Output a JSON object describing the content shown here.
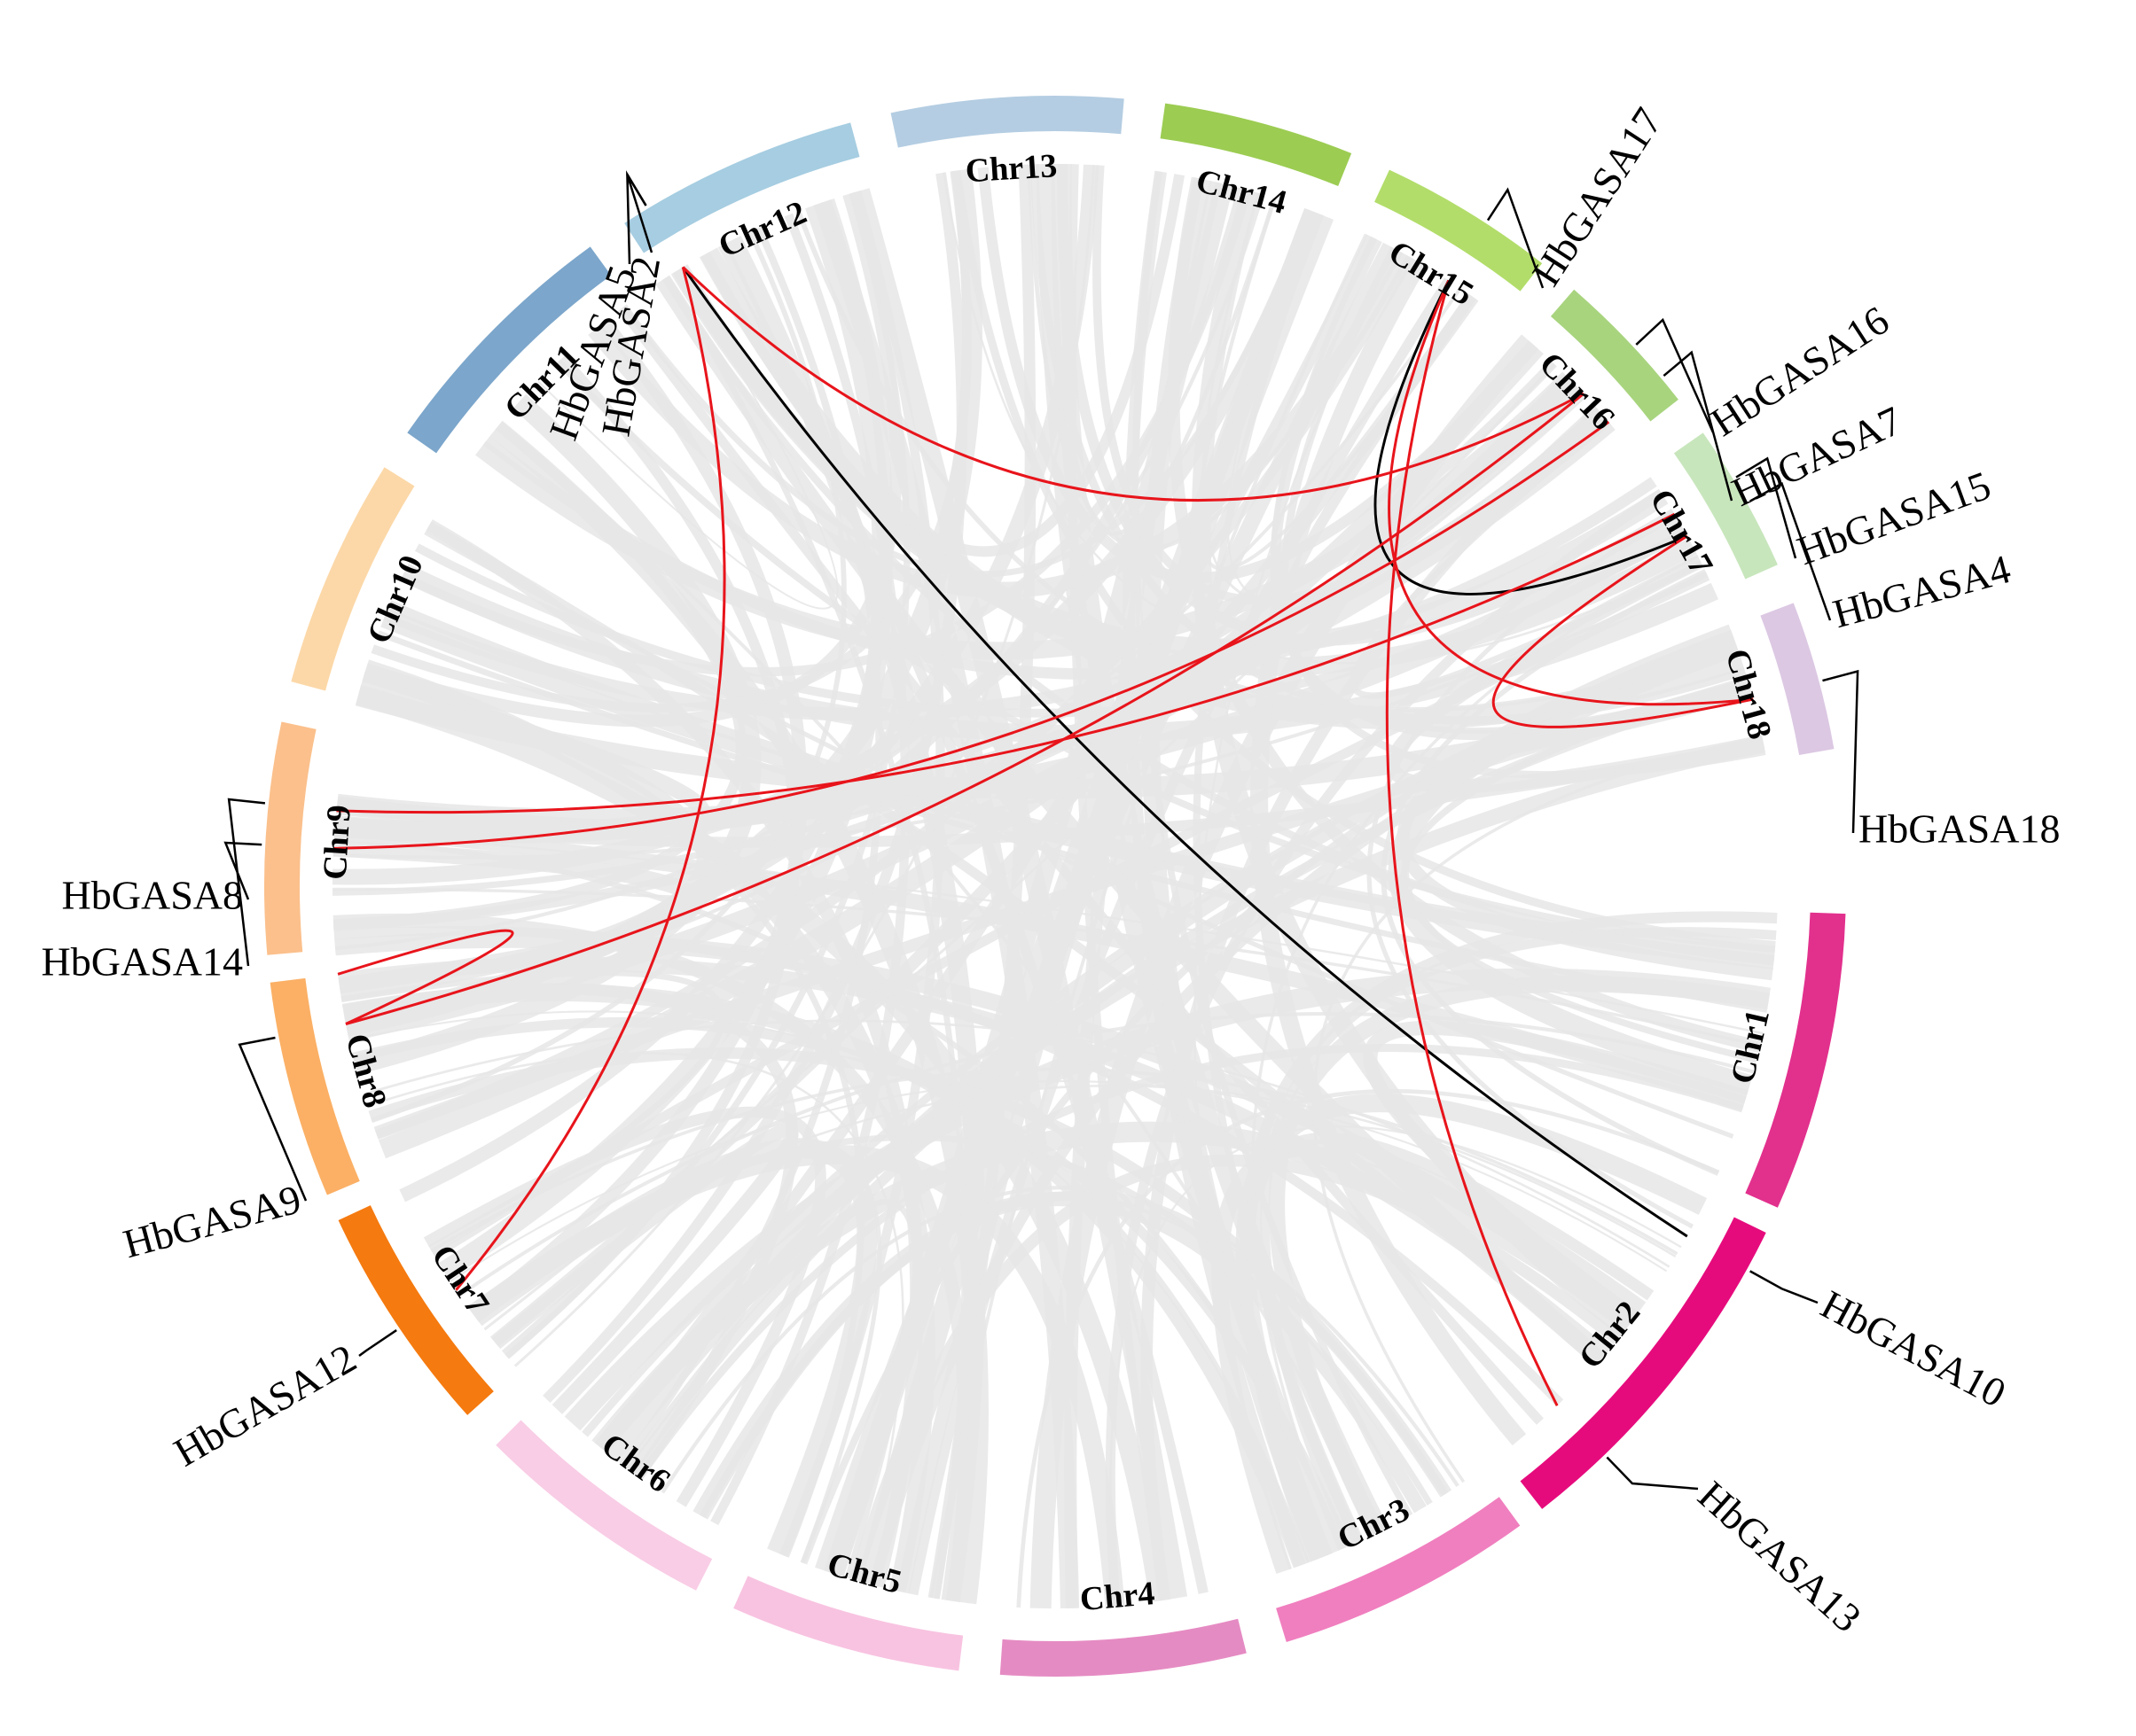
{
  "chromosomes": [
    {
      "name": "Chr1",
      "color": "#e2308d"
    },
    {
      "name": "Chr2",
      "color": "#e60b7d"
    },
    {
      "name": "Chr3",
      "color": "#f07fbf"
    },
    {
      "name": "Chr4",
      "color": "#e58bc3"
    },
    {
      "name": "Chr5",
      "color": "#f8c3e1"
    },
    {
      "name": "Chr6",
      "color": "#f9cde6"
    },
    {
      "name": "Chr7",
      "color": "#f57a0f"
    },
    {
      "name": "Chr8",
      "color": "#fbb065"
    },
    {
      "name": "Chr9",
      "color": "#fbc08c"
    },
    {
      "name": "Chr10",
      "color": "#fcd8a8"
    },
    {
      "name": "Chr11",
      "color": "#7ca6cb"
    },
    {
      "name": "Chr12",
      "color": "#a6cde1"
    },
    {
      "name": "Chr13",
      "color": "#b4cde2"
    },
    {
      "name": "Chr14",
      "color": "#9ccc52"
    },
    {
      "name": "Chr15",
      "color": "#b2dd6a"
    },
    {
      "name": "Chr16",
      "color": "#a8d47e"
    },
    {
      "name": "Chr17",
      "color": "#c8e6bc"
    },
    {
      "name": "Chr18",
      "color": "#dcc8e3"
    }
  ],
  "genes": [
    {
      "name": "HbGASA2",
      "chr": "Chr12"
    },
    {
      "name": "HbGASA5",
      "chr": "Chr12"
    },
    {
      "name": "HbGASA17",
      "chr": "Chr15"
    },
    {
      "name": "HbGASA16",
      "chr": "Chr16"
    },
    {
      "name": "HbGASA7",
      "chr": "Chr16"
    },
    {
      "name": "HbGASA15",
      "chr": "Chr17"
    },
    {
      "name": "HbGASA4",
      "chr": "Chr17"
    },
    {
      "name": "HbGASA18",
      "chr": "Chr18"
    },
    {
      "name": "HbGASA10",
      "chr": "Chr2"
    },
    {
      "name": "HbGASA13",
      "chr": "Chr2"
    },
    {
      "name": "HbGASA12",
      "chr": "Chr7"
    },
    {
      "name": "HbGASA9",
      "chr": "Chr8"
    },
    {
      "name": "HbGASA14",
      "chr": "Chr9"
    },
    {
      "name": "HbGASA8",
      "chr": "Chr9"
    }
  ],
  "links": [
    {
      "from": "HbGASA2",
      "to": "HbGASA10",
      "color": "#000000"
    },
    {
      "from": "HbGASA17",
      "to": "HbGASA4",
      "color": "#000000"
    },
    {
      "from": "HbGASA5",
      "to": "HbGASA12",
      "color": "#e8141b"
    },
    {
      "from": "HbGASA5",
      "to": "HbGASA16",
      "color": "#e8141b"
    },
    {
      "from": "HbGASA17",
      "to": "HbGASA13",
      "color": "#e8141b"
    },
    {
      "from": "HbGASA17",
      "to": "HbGASA18",
      "color": "#e8141b"
    },
    {
      "from": "HbGASA16",
      "to": "HbGASA9",
      "color": "#e8141b"
    },
    {
      "from": "HbGASA7",
      "to": "HbGASA8",
      "color": "#e8141b"
    },
    {
      "from": "HbGASA15",
      "to": "HbGASA14",
      "color": "#e8141b"
    },
    {
      "from": "HbGASA4",
      "to": "HbGASA18",
      "color": "#e8141b"
    },
    {
      "from": "HbGASA9",
      "to": "HbGASA9",
      "color": "#e8141b"
    }
  ]
}
